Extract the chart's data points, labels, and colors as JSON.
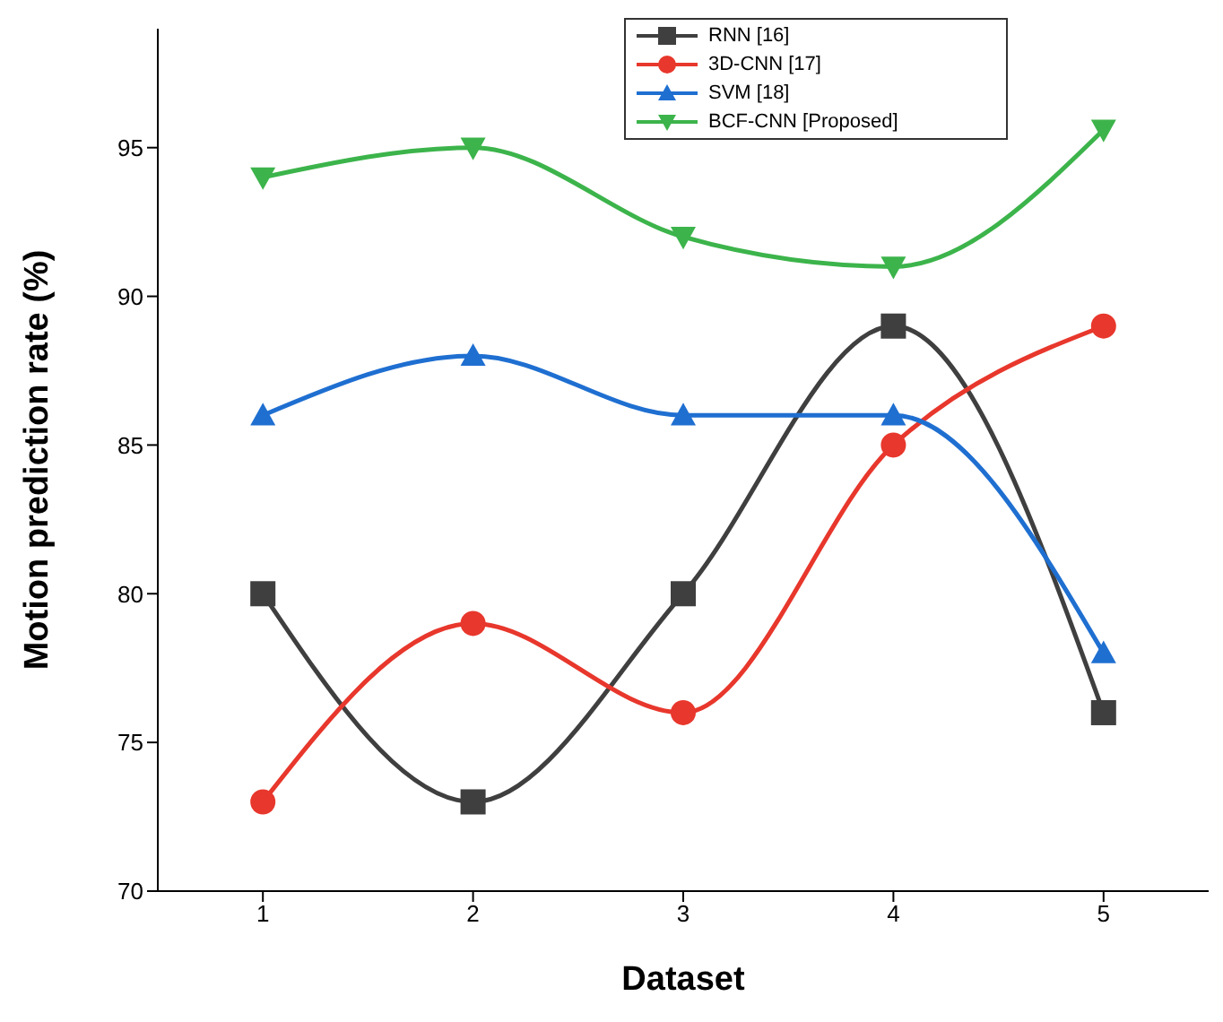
{
  "chart_data": {
    "type": "line",
    "xlabel": "Dataset",
    "ylabel": "Motion prediction rate (%)",
    "x": [
      1,
      2,
      3,
      4,
      5
    ],
    "xlim": [
      0.5,
      5.5
    ],
    "xticks": [
      1,
      2,
      3,
      4,
      5
    ],
    "ylim": [
      70,
      99
    ],
    "yticks": [
      70,
      75,
      80,
      85,
      90,
      95
    ],
    "legend": "top right",
    "series": [
      {
        "name": "RNN [16]",
        "color": "#3f3f3f",
        "marker": "square",
        "values": [
          80,
          73,
          80,
          89,
          76
        ]
      },
      {
        "name": "3D-CNN [17]",
        "color": "#e8372c",
        "marker": "circle",
        "values": [
          73,
          79,
          76,
          85,
          89
        ]
      },
      {
        "name": "SVM [18]",
        "color": "#1f6fd1",
        "marker": "triangle",
        "values": [
          86,
          88,
          86,
          86,
          78
        ]
      },
      {
        "name": "BCF-CNN [Proposed]",
        "color": "#3cb44b",
        "marker": "triangle-down",
        "values": [
          94,
          95,
          92,
          91,
          95.6
        ]
      }
    ]
  }
}
